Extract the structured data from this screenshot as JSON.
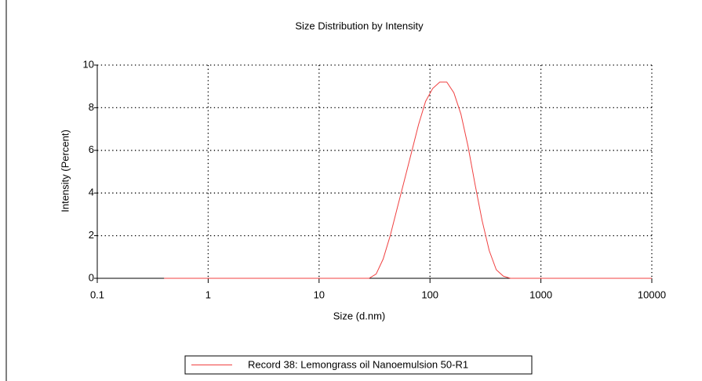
{
  "chart_data": {
    "type": "line",
    "title": "Size Distribution by Intensity",
    "x_label": "Size (d.nm)",
    "y_label": "Intensity (Percent)",
    "x_scale": "log",
    "xlim": [
      0.1,
      10000
    ],
    "xticks": [
      0.1,
      1,
      10,
      100,
      1000,
      10000
    ],
    "ylim": [
      0,
      10
    ],
    "yticks": [
      0,
      2,
      4,
      6,
      8,
      10
    ],
    "grid": true,
    "legend": "bottom",
    "x": [
      0.4,
      1,
      10,
      28.2,
      32.7,
      37.8,
      43.8,
      50.7,
      58.8,
      68.1,
      78.8,
      91.3,
      105.7,
      122.4,
      141.8,
      164.2,
      190.1,
      220.2,
      255.0,
      295.3,
      342.0,
      396.1,
      458.7,
      531.2,
      615.1,
      1000,
      10000
    ],
    "series": [
      {
        "name": "Record 38: Lemongrass oil Nanoemulsion 50-R1",
        "color": "#f04040",
        "values": [
          0,
          0,
          0,
          0,
          0.2,
          0.9,
          2.0,
          3.3,
          4.6,
          5.9,
          7.2,
          8.3,
          8.9,
          9.2,
          9.2,
          8.7,
          7.7,
          6.2,
          4.4,
          2.7,
          1.3,
          0.4,
          0.1,
          0,
          0,
          0,
          0
        ]
      }
    ]
  }
}
